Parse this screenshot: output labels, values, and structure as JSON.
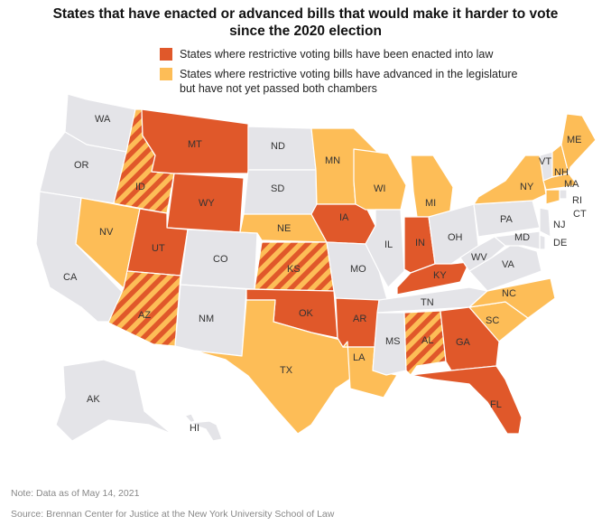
{
  "title": {
    "line1": "States that have enacted or advanced bills that would make it harder to vote",
    "line2": "since the 2020 election"
  },
  "legend": {
    "enacted": {
      "label": "States where restrictive voting bills have been enacted into law",
      "color": "#e0582a"
    },
    "advanced": {
      "line1": "States where restrictive voting bills have advanced in the legislature",
      "line2": "but have not yet passed both chambers",
      "color": "#fdbd57"
    },
    "other_color": "#e4e4e8"
  },
  "states": {
    "WA": "WA",
    "OR": "OR",
    "CA": "CA",
    "ID": "ID",
    "NV": "NV",
    "MT": "MT",
    "WY": "WY",
    "UT": "UT",
    "AZ": "AZ",
    "CO": "CO",
    "NM": "NM",
    "ND": "ND",
    "SD": "SD",
    "NE": "NE",
    "KS": "KS",
    "OK": "OK",
    "TX": "TX",
    "MN": "MN",
    "IA": "IA",
    "MO": "MO",
    "AR": "AR",
    "LA": "LA",
    "WI": "WI",
    "IL": "IL",
    "MI": "MI",
    "IN": "IN",
    "OH": "OH",
    "KY": "KY",
    "TN": "TN",
    "MS": "MS",
    "AL": "AL",
    "GA": "GA",
    "FL": "FL",
    "SC": "SC",
    "NC": "NC",
    "VA": "VA",
    "WV": "WV",
    "PA": "PA",
    "NY": "NY",
    "VT": "VT",
    "NH": "NH",
    "ME": "ME",
    "MA": "MA",
    "RI": "RI",
    "CT": "CT",
    "NJ": "NJ",
    "DE": "DE",
    "MD": "MD",
    "AK": "AK",
    "HI": "HI"
  },
  "status": {
    "enacted": [
      "MT",
      "WY",
      "UT",
      "IA",
      "OK",
      "AR",
      "IN",
      "KY",
      "GA",
      "FL"
    ],
    "advanced": [
      "NV",
      "MN",
      "WI",
      "MI",
      "NE",
      "TX",
      "LA",
      "NC",
      "SC",
      "NY",
      "NH",
      "ME",
      "MA",
      "CT"
    ],
    "both": [
      "ID",
      "AZ",
      "KS",
      "AL"
    ]
  },
  "note": "Note: Data as of May 14, 2021",
  "source": "Source: Brennan Center for Justice at the New York University School of Law"
}
